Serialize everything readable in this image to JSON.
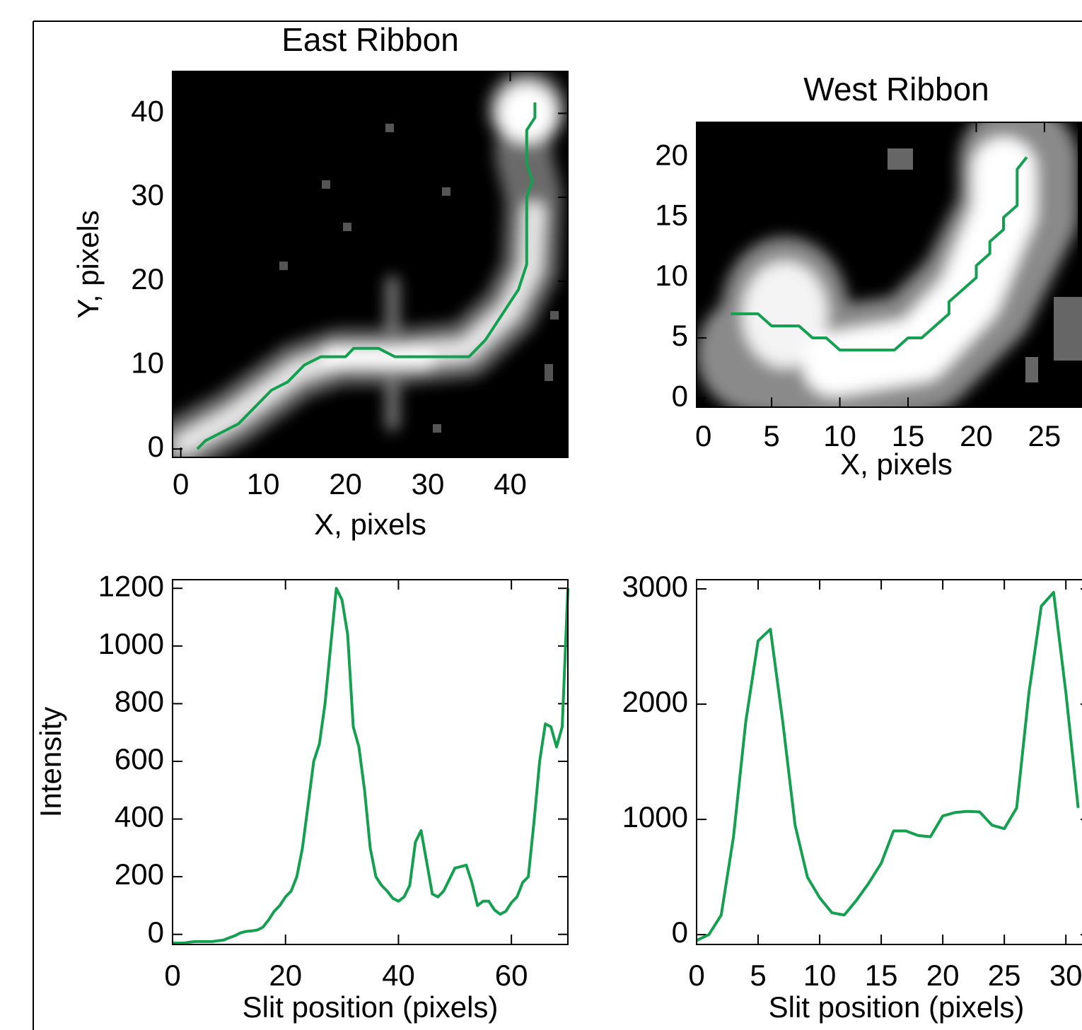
{
  "chart_data": [
    {
      "type": "image",
      "title": "East Ribbon",
      "x_label": "X, pixels",
      "y_label": "Y, pixels",
      "xlim": [
        -1,
        47
      ],
      "ylim": [
        -1,
        45
      ],
      "xticks": [
        0,
        10,
        20,
        30,
        40
      ],
      "yticks": [
        0,
        10,
        20,
        30,
        40
      ],
      "color": "#14a050",
      "x": [
        2,
        3,
        5,
        7,
        9,
        11,
        13,
        15,
        17,
        20,
        21,
        24,
        26,
        35,
        37,
        39,
        41,
        42,
        42,
        42.7,
        42,
        42,
        43,
        43
      ],
      "values": [
        0,
        1,
        2,
        3,
        5,
        7,
        8,
        10,
        11,
        11,
        12,
        12,
        11,
        11,
        13,
        16,
        19,
        22,
        30,
        32,
        34,
        38,
        39.5,
        41.3
      ]
    },
    {
      "type": "image",
      "title": "West Ribbon",
      "x_label": "X, pixels",
      "xlim": [
        -0.5,
        30.5
      ],
      "ylim": [
        -0.75,
        22.9
      ],
      "xticks": [
        0,
        5,
        10,
        15,
        20,
        25
      ],
      "yticks": [
        0,
        5,
        10,
        15,
        20
      ],
      "color": "#14a050",
      "x": [
        2,
        4,
        5,
        7,
        8,
        9,
        10,
        14,
        15,
        16,
        18,
        18,
        20,
        20,
        21,
        21,
        22,
        22,
        23,
        23,
        23.7
      ],
      "values": [
        7,
        7,
        6,
        6,
        5,
        5,
        4,
        4,
        5,
        5,
        7,
        8,
        10,
        11,
        12,
        13,
        14,
        15,
        16,
        19,
        20
      ]
    },
    {
      "type": "line",
      "x_label": "Slit position (pixels)",
      "y_label": "Intensity",
      "xlim": [
        0,
        70
      ],
      "ylim": [
        -35,
        1230
      ],
      "xticks": [
        0,
        20,
        40,
        60
      ],
      "yticks": [
        0,
        200,
        400,
        600,
        800,
        1000,
        1200
      ],
      "color": "#14a050",
      "x": [
        0,
        1,
        2,
        3,
        4,
        5,
        6,
        7,
        8,
        9,
        10,
        11,
        12,
        13,
        14,
        15,
        16,
        17,
        18,
        19,
        20,
        21,
        22,
        23,
        24,
        25,
        26,
        27,
        28,
        29,
        30,
        31,
        32,
        33,
        34,
        35,
        36,
        37,
        38,
        39,
        40,
        41,
        42,
        43,
        44,
        45,
        46,
        47,
        48,
        49,
        50,
        51,
        52,
        53,
        54,
        55,
        56,
        57,
        58,
        59,
        60,
        61,
        62,
        63,
        64,
        65,
        66,
        67,
        68,
        69,
        70
      ],
      "values": [
        -30,
        -30,
        -30,
        -27,
        -25,
        -25,
        -25,
        -25,
        -22,
        -20,
        -12,
        -5,
        5,
        10,
        12,
        15,
        25,
        50,
        80,
        100,
        130,
        150,
        200,
        300,
        450,
        600,
        660,
        800,
        1000,
        1200,
        1160,
        1040,
        720,
        650,
        500,
        300,
        200,
        170,
        150,
        125,
        115,
        130,
        170,
        320,
        360,
        250,
        140,
        130,
        150,
        190,
        230,
        235,
        240,
        180,
        100,
        115,
        115,
        85,
        70,
        80,
        110,
        130,
        180,
        200,
        390,
        600,
        730,
        720,
        650,
        720,
        1200
      ]
    },
    {
      "type": "line",
      "x_label": "Slit position (pixels)",
      "xlim": [
        0,
        32
      ],
      "ylim": [
        -85,
        3080
      ],
      "xticks": [
        0,
        5,
        10,
        15,
        20,
        25,
        30
      ],
      "yticks": [
        0,
        1000,
        2000,
        3000
      ],
      "color": "#14a050",
      "x": [
        0,
        1,
        2,
        3,
        4,
        5,
        6,
        7,
        8,
        9,
        10,
        11,
        12,
        13,
        14,
        15,
        16,
        17,
        18,
        19,
        20,
        21,
        22,
        23,
        24,
        25,
        26,
        27,
        28,
        29,
        30,
        31
      ],
      "values": [
        -50,
        0,
        170,
        850,
        1850,
        2550,
        2650,
        1850,
        950,
        500,
        320,
        190,
        170,
        300,
        450,
        620,
        900,
        900,
        860,
        850,
        1030,
        1060,
        1070,
        1065,
        950,
        920,
        1100,
        2100,
        2850,
        2970,
        2100,
        1100
      ]
    }
  ]
}
